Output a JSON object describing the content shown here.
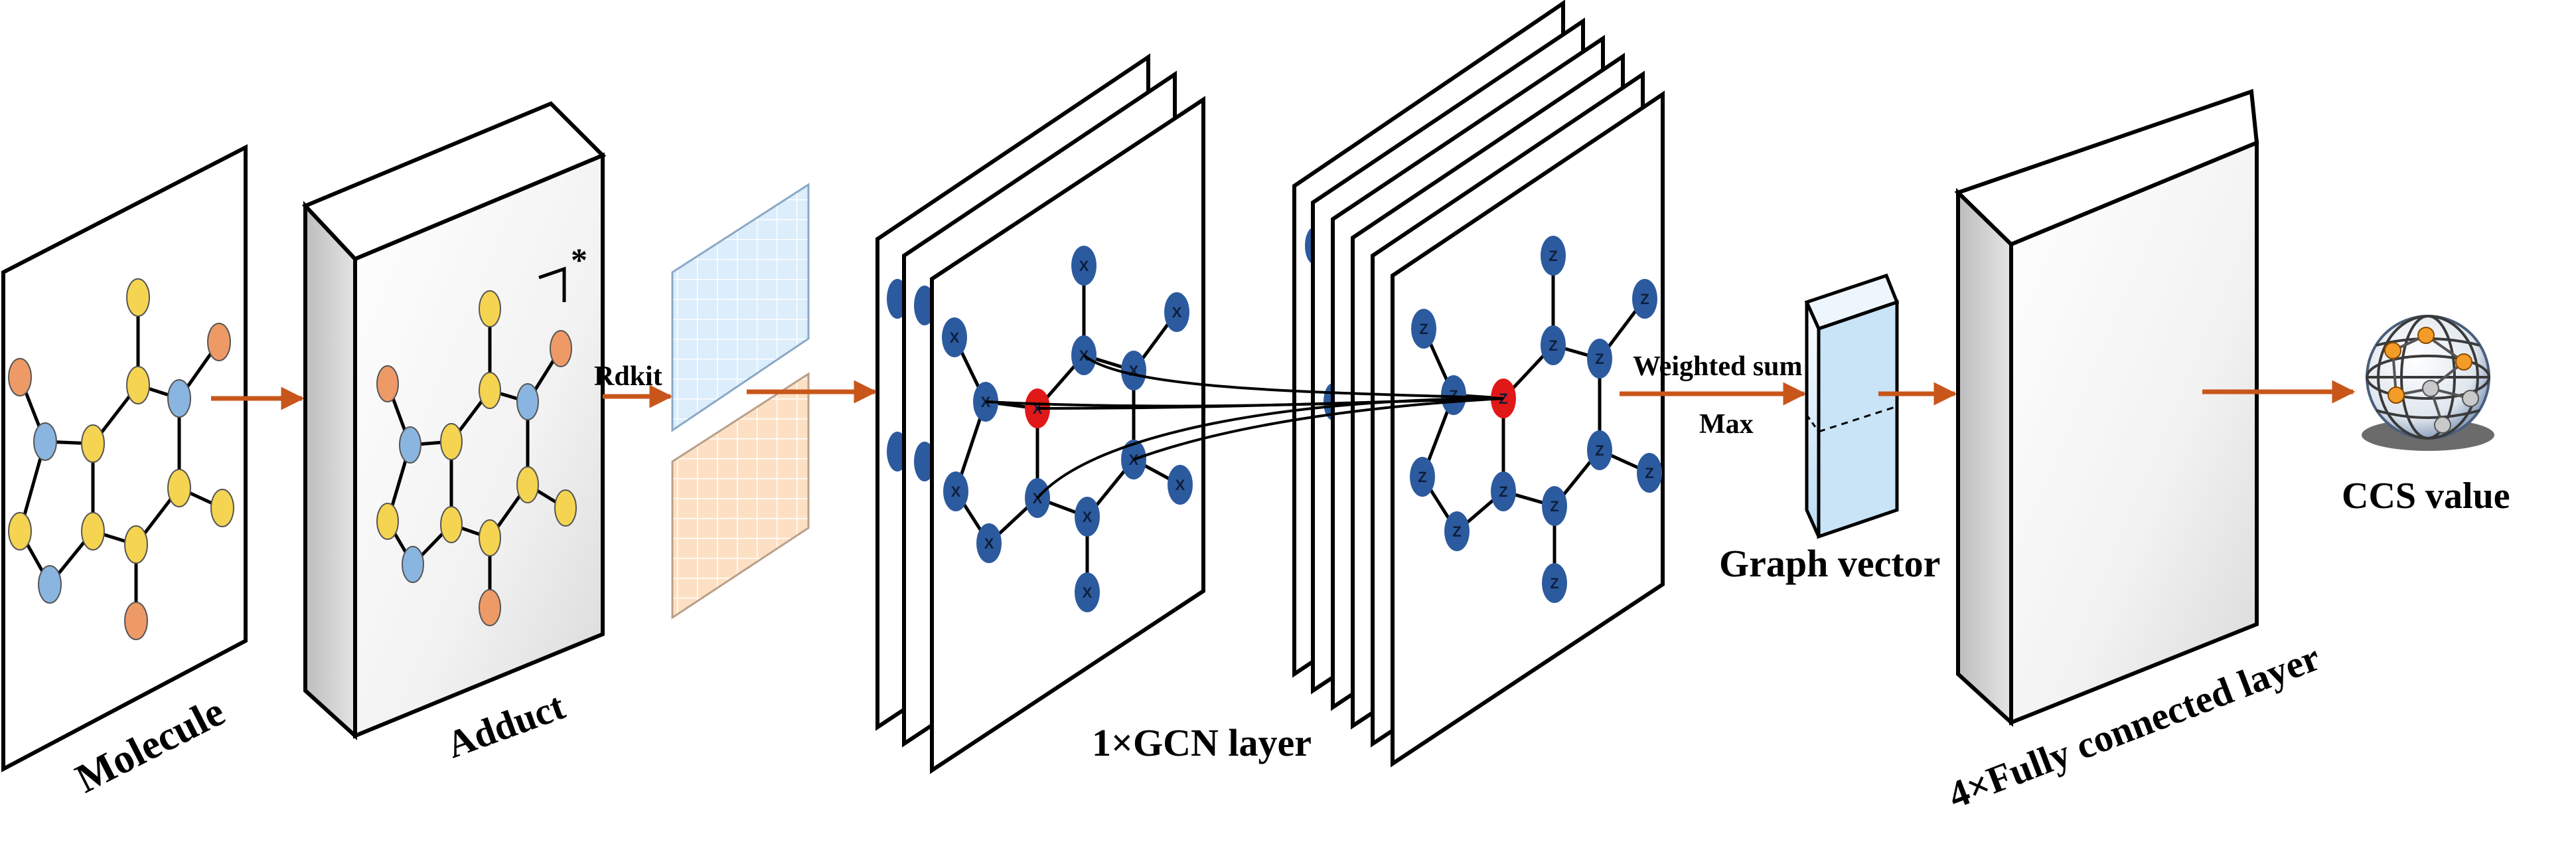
{
  "labels": {
    "molecule": "Molecule",
    "adduct": "Adduct",
    "rdkit": "Rdkit",
    "gcn": "1×GCN layer",
    "weighted_sum": "Weighted sum",
    "max": "Max",
    "graph_vector": "Graph vector",
    "fc": "4×Fully connected layer",
    "ccs": "CCS value",
    "charge": "*"
  },
  "node_labels": {
    "x": "X",
    "z": "Z"
  },
  "colors": {
    "arrow": "#c8561a",
    "yellow_atom": "#f5d451",
    "blue_atom": "#8ab5e0",
    "orange_atom": "#ee9a66",
    "gcn_node": "#2c5a9e",
    "center_node": "#e01818",
    "matrix_blue": "#dcedfb",
    "matrix_orange": "#fde0c4"
  },
  "icons": {
    "output": "globe-network-icon"
  }
}
